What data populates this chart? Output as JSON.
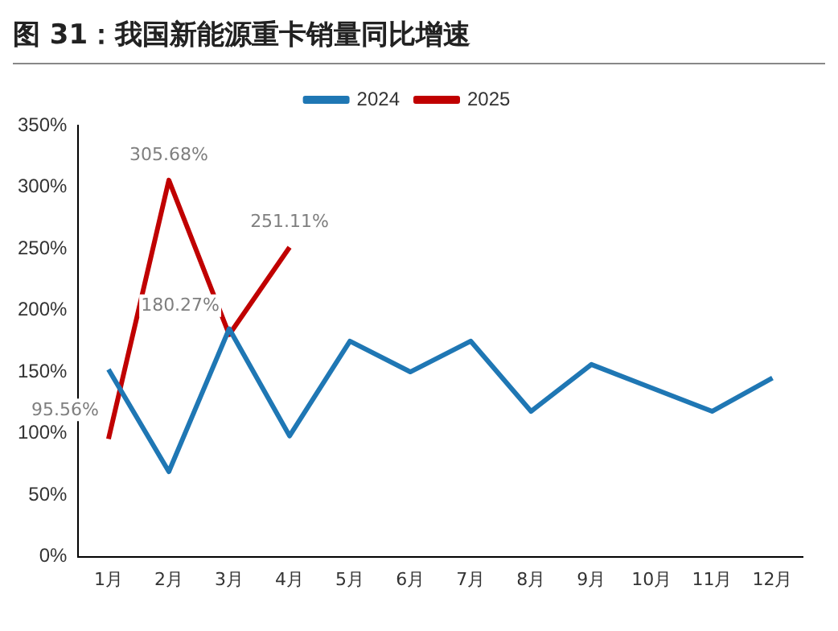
{
  "chart_data": {
    "type": "line",
    "title": "图 31：我国新能源重卡销量同比增速",
    "categories": [
      "1月",
      "2月",
      "3月",
      "4月",
      "5月",
      "6月",
      "7月",
      "8月",
      "9月",
      "10月",
      "11月",
      "12月"
    ],
    "series": [
      {
        "name": "2024",
        "color": "#1f77b4",
        "values": [
          152,
          69,
          185,
          98,
          175,
          150,
          175,
          118,
          156,
          137,
          118,
          145
        ]
      },
      {
        "name": "2025",
        "color": "#c00000",
        "values": [
          95.56,
          305.68,
          180.27,
          251.11,
          null,
          null,
          null,
          null,
          null,
          null,
          null,
          null
        ],
        "value_labels": [
          "95.56%",
          "305.68%",
          "180.27%",
          "251.11%",
          null,
          null,
          null,
          null,
          null,
          null,
          null,
          null
        ]
      }
    ],
    "ylim": [
      0,
      350
    ],
    "yticks": [
      {
        "value": 0,
        "label": "0%"
      },
      {
        "value": 50,
        "label": "50%"
      },
      {
        "value": 100,
        "label": "100%"
      },
      {
        "value": 150,
        "label": "150%"
      },
      {
        "value": 200,
        "label": "200%"
      },
      {
        "value": 250,
        "label": "250%"
      },
      {
        "value": 300,
        "label": "300%"
      },
      {
        "value": 350,
        "label": "350%"
      }
    ],
    "grid": false,
    "legend": "top",
    "marker": "none",
    "line_style": "solid"
  }
}
